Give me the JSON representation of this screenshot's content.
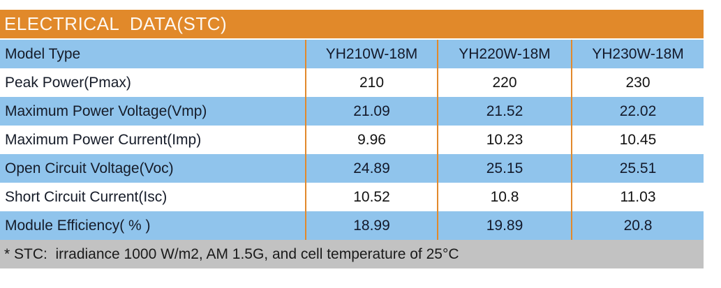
{
  "table": {
    "title": "ELECTRICAL  DATA(STC)",
    "header_row": {
      "label": "Model Type",
      "values": [
        "YH210W-18M",
        "YH220W-18M",
        "YH230W-18M"
      ]
    },
    "rows": [
      {
        "label": "Peak Power(Pmax)",
        "values": [
          "210",
          "220",
          "230"
        ]
      },
      {
        "label": "Maximum Power Voltage(Vmp)",
        "values": [
          "21.09",
          "21.52",
          "22.02"
        ]
      },
      {
        "label": "Maximum Power Current(Imp)",
        "values": [
          "9.96",
          "10.23",
          "10.45"
        ]
      },
      {
        "label": "Open Circuit Voltage(Voc)",
        "values": [
          "24.89",
          "25.15",
          "25.51"
        ]
      },
      {
        "label": "Short Circuit Current(Isc)",
        "values": [
          "10.52",
          "10.8",
          "11.03"
        ]
      },
      {
        "label": "Module Efficiency( % )",
        "values": [
          "18.99",
          "19.89",
          "20.8"
        ]
      }
    ],
    "footnote": "* STC:  irradiance 1000 W/m2, AM 1.5G, and cell temperature of 25°C",
    "colors": {
      "header_bg": "#E1892A",
      "row_blue": "#90C4EC",
      "row_white": "#FFFFFF",
      "divider_orange": "#E2892B",
      "footer_bg": "#C2C2C2",
      "header_text": "#FDF8F1",
      "label_text": "#151B28",
      "value_text": "#121212"
    }
  }
}
